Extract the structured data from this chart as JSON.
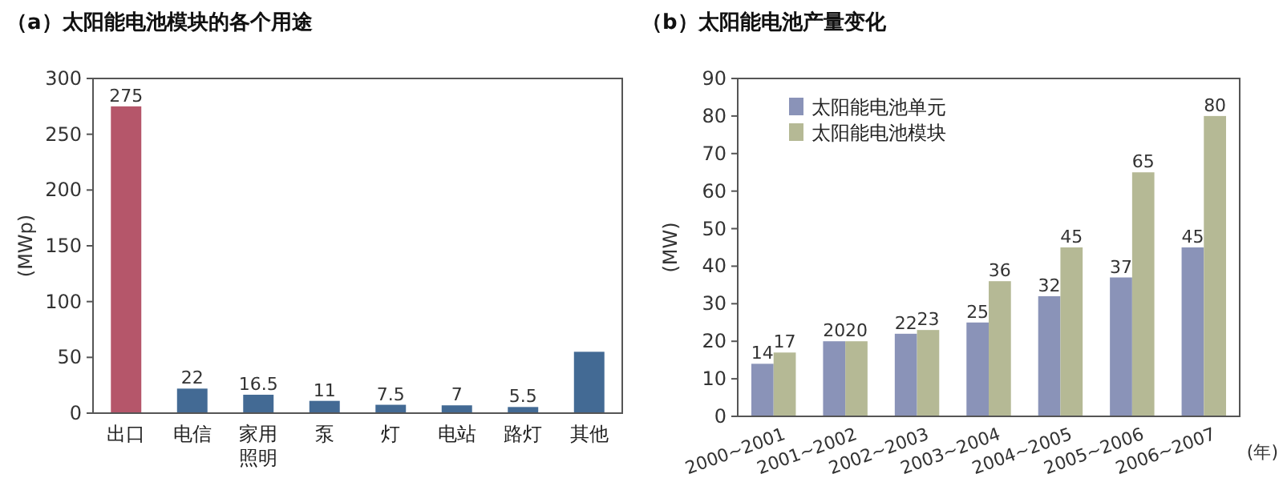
{
  "chart_data": [
    {
      "type": "bar",
      "title": "（a）太阳能电池模块的各个用途",
      "ylabel": "(MWp)",
      "categories": [
        "出口",
        "电信",
        "家用照明",
        "泵",
        "灯",
        "电站",
        "路灯",
        "其他"
      ],
      "values": [
        275,
        22,
        16.5,
        11,
        7.5,
        7,
        5.5,
        55
      ],
      "colors": [
        "#b5566a",
        "#436a94",
        "#436a94",
        "#436a94",
        "#436a94",
        "#436a94",
        "#436a94",
        "#436a94"
      ],
      "value_labels": [
        "275",
        "22",
        "16.5",
        "11",
        "7.5",
        "7",
        "5.5",
        null
      ],
      "ylim": [
        0,
        300
      ],
      "yticks": [
        0,
        50,
        100,
        150,
        200,
        250,
        300
      ],
      "grid": false
    },
    {
      "type": "bar",
      "title": "（b）太阳能电池产量变化",
      "ylabel": "(MW)",
      "xlabel": "(年)",
      "categories": [
        "2000~2001",
        "2001~2002",
        "2002~2003",
        "2003~2004",
        "2004~2005",
        "2005~2006",
        "2006~2007"
      ],
      "series": [
        {
          "name": "太阳能电池单元",
          "color": "#8a93b8",
          "values": [
            14,
            20,
            22,
            25,
            32,
            37,
            45
          ]
        },
        {
          "name": "太阳能电池模块",
          "color": "#b5b995",
          "values": [
            17,
            20,
            23,
            36,
            45,
            65,
            80
          ]
        }
      ],
      "data_labels": true,
      "legend": "top left",
      "grid": false,
      "ylim": [
        0,
        90
      ],
      "yticks": [
        0,
        10,
        20,
        30,
        40,
        50,
        60,
        70,
        80,
        90
      ]
    }
  ]
}
